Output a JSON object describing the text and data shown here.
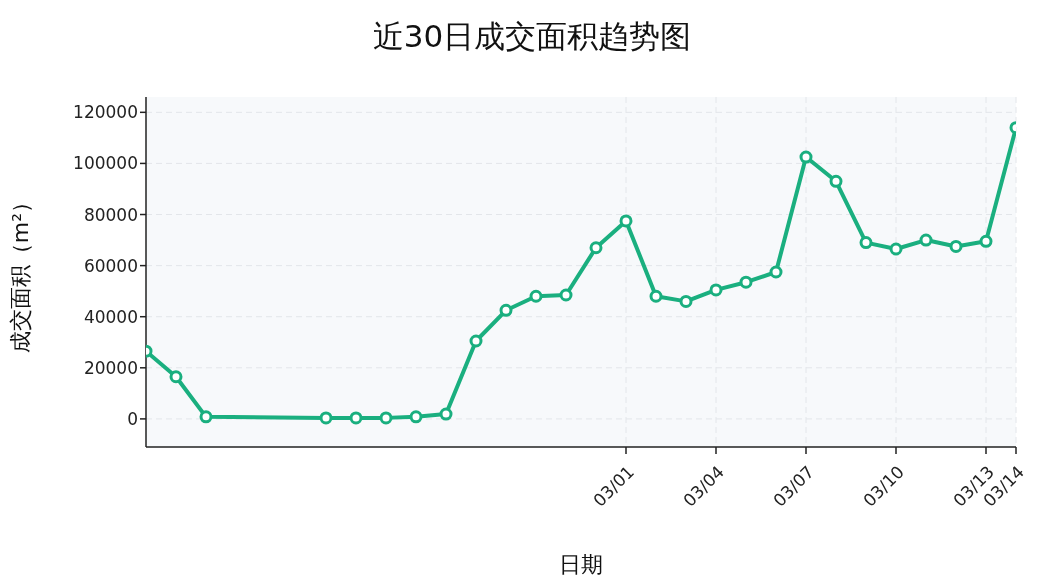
{
  "chart_data": {
    "type": "line",
    "title": "近30日成交面积趋势图",
    "xlabel": "日期",
    "ylabel": "成交面积（m²）",
    "x": [
      "--02-13",
      "--02-14",
      "--02-15",
      "--02-19",
      "--02-20",
      "--02-21",
      "--02-22",
      "--02-23",
      "--02-24",
      "--02-25",
      "--02-26",
      "--02-27",
      "--02-28",
      "--03-01",
      "--03-02",
      "--03-03",
      "--03-04",
      "--03-05",
      "--03-06",
      "--03-07",
      "--03-08",
      "--03-09",
      "--03-10",
      "--03-11",
      "--03-12",
      "--03-13",
      "--03-14"
    ],
    "series": [
      {
        "color": "#1aaf7f",
        "values": [
          26500,
          16500,
          800,
          400,
          400,
          400,
          800,
          1900,
          30500,
          42500,
          48000,
          48500,
          67000,
          77500,
          48000,
          46000,
          50500,
          53500,
          57500,
          102500,
          93000,
          69000,
          66500,
          70000,
          67500,
          69500,
          114000
        ]
      }
    ],
    "xlim": [
      "--02-13",
      "--03-14"
    ],
    "xticks": [
      {
        "value": "--03-01",
        "label": "03/01"
      },
      {
        "value": "--03-04",
        "label": "03/04"
      },
      {
        "value": "--03-07",
        "label": "03/07"
      },
      {
        "value": "--03-10",
        "label": "03/10"
      },
      {
        "value": "--03-13",
        "label": "03/13"
      },
      {
        "value": "--03-14",
        "label": "03/14"
      }
    ],
    "ylim": [
      -11000,
      126000
    ],
    "yticks": [
      0,
      20000,
      40000,
      60000,
      80000,
      100000,
      120000
    ],
    "grid": true,
    "legend": false,
    "marker": "circle",
    "line_style": "solid"
  }
}
